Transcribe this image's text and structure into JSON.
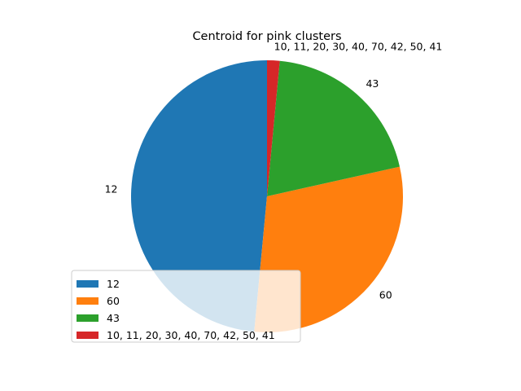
{
  "chart_data": {
    "type": "pie",
    "title": "Centroid for pink clusters",
    "categories": [
      "12",
      "60",
      "43",
      " 10, 11, 20, 30, 40, 70, 42, 50, 41"
    ],
    "values": [
      48.5,
      30.0,
      20.0,
      1.5
    ],
    "colors": [
      "#1f77b4",
      "#ff7f0e",
      "#2ca02c",
      "#d62728"
    ],
    "start_angle_deg": 90,
    "direction": "counterclockwise",
    "legend": {
      "placement": "lower-left",
      "entries": [
        "12",
        "60",
        "43",
        " 10, 11, 20, 30, 40, 70, 42, 50, 41"
      ]
    }
  }
}
